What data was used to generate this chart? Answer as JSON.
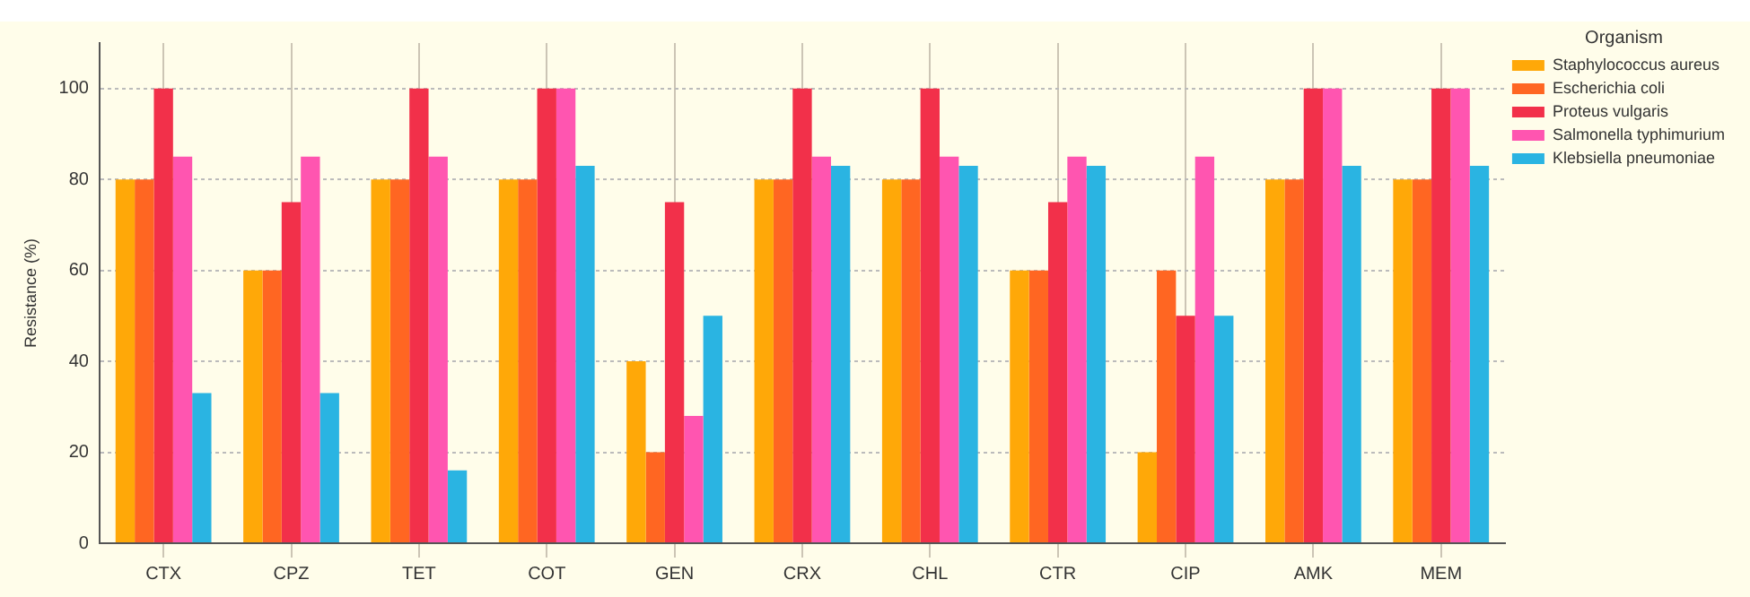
{
  "chart_data": {
    "type": "bar",
    "ylabel": "Resistance (%)",
    "legend_title": "Organism",
    "legend": "top right",
    "grid": true,
    "categories": [
      "CTX",
      "CPZ",
      "TET",
      "COT",
      "GEN",
      "CRX",
      "CHL",
      "CTR",
      "CIP",
      "AMK",
      "MEM"
    ],
    "series": [
      {
        "name": "Staphylococcus aureus",
        "color": "#ffa808",
        "values": [
          80,
          60,
          80,
          80,
          40,
          80,
          80,
          60,
          20,
          80,
          80
        ]
      },
      {
        "name": "Escherichia coli",
        "color": "#ff6622",
        "values": [
          80,
          60,
          80,
          80,
          20,
          80,
          80,
          60,
          60,
          80,
          80
        ]
      },
      {
        "name": "Proteus vulgaris",
        "color": "#f2304a",
        "values": [
          100,
          75,
          100,
          100,
          75,
          100,
          100,
          75,
          50,
          100,
          100
        ]
      },
      {
        "name": "Salmonella typhimurium",
        "color": "#ff55b0",
        "values": [
          85,
          85,
          85,
          100,
          28,
          85,
          85,
          85,
          85,
          100,
          100
        ]
      },
      {
        "name": "Klebsiella pneumoniae",
        "color": "#2ab4e2",
        "values": [
          33,
          33,
          16,
          83,
          50,
          83,
          83,
          83,
          50,
          83,
          83
        ]
      }
    ],
    "ylim": [
      0,
      110
    ],
    "yticks": [
      0,
      20,
      40,
      60,
      80,
      100
    ]
  }
}
